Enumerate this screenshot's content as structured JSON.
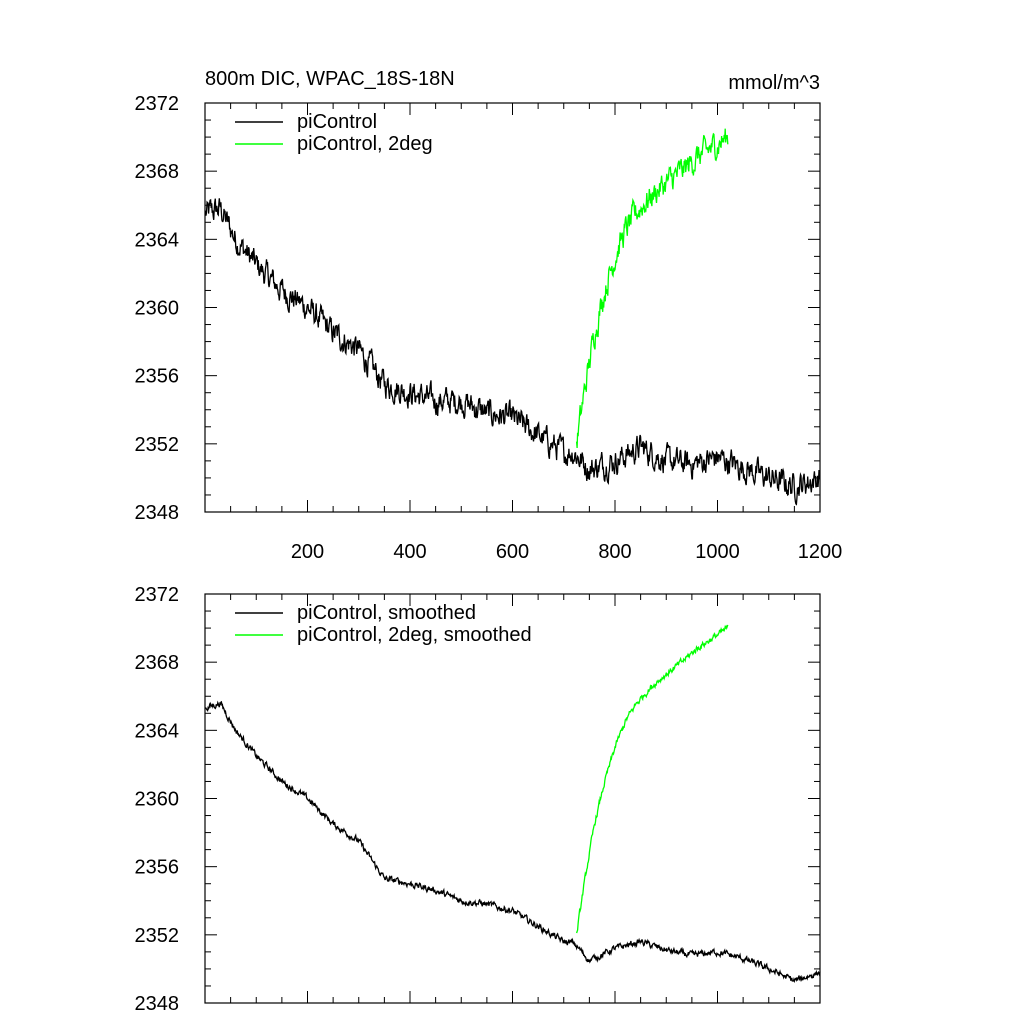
{
  "chart_data": [
    {
      "type": "line",
      "title": "800m DIC, WPAC_18S-18N",
      "units": "mmol/m^3",
      "xlim": [
        0,
        1200
      ],
      "ylim": [
        2348,
        2372
      ],
      "yticks": [
        2348,
        2352,
        2356,
        2360,
        2364,
        2368,
        2372
      ],
      "xticks": [
        200,
        400,
        600,
        800,
        1000,
        1200
      ],
      "legend_position": "top-left",
      "series": [
        {
          "name": "piControl",
          "color": "#000000",
          "noise": 0.6,
          "x": [
            1,
            30,
            60,
            100,
            150,
            200,
            250,
            300,
            350,
            400,
            450,
            500,
            550,
            600,
            650,
            700,
            720,
            750,
            800,
            850,
            900,
            950,
            1000,
            1050,
            1100,
            1150,
            1200
          ],
          "y": [
            2365.5,
            2365.8,
            2364.0,
            2362.5,
            2361.0,
            2360.0,
            2358.5,
            2357.5,
            2355.5,
            2355.0,
            2354.5,
            2354.5,
            2353.8,
            2353.5,
            2352.5,
            2351.5,
            2351.5,
            2350.5,
            2351.0,
            2351.8,
            2351.0,
            2350.8,
            2351.2,
            2350.6,
            2350.0,
            2349.5,
            2350.0
          ]
        },
        {
          "name": "piControl, 2deg",
          "color": "#00ff00",
          "noise": 0.6,
          "x": [
            725,
            740,
            760,
            780,
            800,
            820,
            840,
            860,
            880,
            900,
            930,
            960,
            990,
            1020
          ],
          "y": [
            2352.0,
            2355.0,
            2358.5,
            2361.0,
            2363.0,
            2364.5,
            2365.5,
            2366.2,
            2366.8,
            2367.3,
            2368.0,
            2368.8,
            2369.4,
            2370.0
          ]
        }
      ]
    },
    {
      "type": "line",
      "title": "",
      "units": "",
      "xlim": [
        0,
        1200
      ],
      "ylim": [
        2348,
        2372
      ],
      "yticks": [
        2348,
        2352,
        2356,
        2360,
        2364,
        2368,
        2372
      ],
      "xticks": [],
      "legend_position": "top-left",
      "series": [
        {
          "name": "piControl, smoothed",
          "color": "#000000",
          "noise": 0.15,
          "x": [
            1,
            30,
            60,
            100,
            150,
            200,
            250,
            300,
            350,
            400,
            450,
            500,
            550,
            600,
            650,
            700,
            720,
            750,
            800,
            850,
            900,
            950,
            1000,
            1050,
            1100,
            1150,
            1200
          ],
          "y": [
            2365.3,
            2365.6,
            2364.0,
            2362.5,
            2361.0,
            2360.0,
            2358.5,
            2357.5,
            2355.3,
            2355.0,
            2354.6,
            2354.0,
            2353.8,
            2353.4,
            2352.5,
            2351.6,
            2351.5,
            2350.5,
            2351.2,
            2351.6,
            2351.1,
            2350.8,
            2351.0,
            2350.6,
            2350.0,
            2349.3,
            2349.8
          ]
        },
        {
          "name": "piControl, 2deg, smoothed",
          "color": "#00ff00",
          "noise": 0.15,
          "x": [
            725,
            740,
            760,
            780,
            800,
            820,
            840,
            860,
            880,
            900,
            930,
            960,
            990,
            1020
          ],
          "y": [
            2352.0,
            2355.0,
            2358.5,
            2361.0,
            2363.0,
            2364.5,
            2365.5,
            2366.2,
            2366.8,
            2367.3,
            2368.0,
            2368.8,
            2369.4,
            2370.0
          ]
        }
      ]
    }
  ]
}
